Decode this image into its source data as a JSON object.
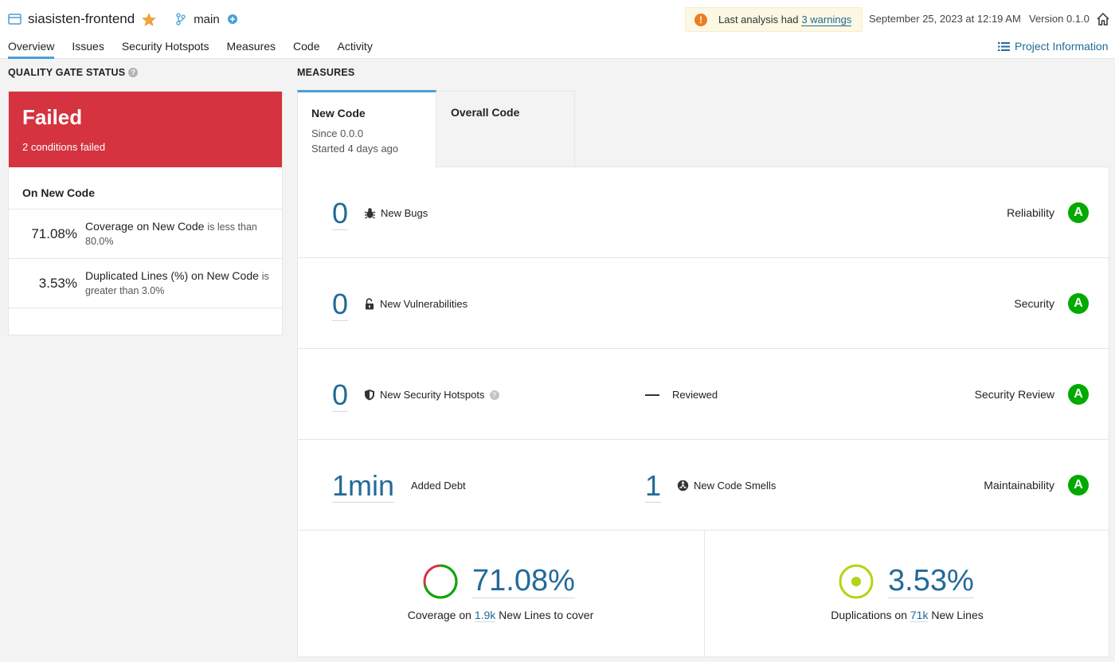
{
  "header": {
    "project_name": "siasisten-frontend",
    "branch": "main",
    "warning_prefix": "Last analysis had",
    "warning_link": "3 warnings",
    "date": "September 25, 2023 at 12:19 AM",
    "version": "Version 0.1.0",
    "project_info": "Project Information"
  },
  "tabs": [
    {
      "label": "Overview",
      "active": true
    },
    {
      "label": "Issues"
    },
    {
      "label": "Security Hotspots"
    },
    {
      "label": "Measures"
    },
    {
      "label": "Code"
    },
    {
      "label": "Activity"
    }
  ],
  "quality_gate": {
    "heading": "QUALITY GATE STATUS",
    "status": "Failed",
    "subtitle": "2 conditions failed",
    "on_new_code": "On New Code",
    "conditions": [
      {
        "value": "71.08%",
        "metric": "Coverage on New Code",
        "op": "is less than",
        "threshold": "80.0%"
      },
      {
        "value": "3.53%",
        "metric": "Duplicated Lines (%) on New Code",
        "op": "is",
        "threshold": "greater than 3.0%"
      }
    ]
  },
  "measures": {
    "heading": "MEASURES",
    "tab_new": {
      "label": "New Code",
      "since": "Since 0.0.0",
      "started": "Started 4 days ago"
    },
    "tab_overall": {
      "label": "Overall Code"
    },
    "rows": {
      "bugs": {
        "value": "0",
        "label": "New Bugs",
        "type": "Reliability",
        "rating": "A"
      },
      "vulns": {
        "value": "0",
        "label": "New Vulnerabilities",
        "type": "Security",
        "rating": "A"
      },
      "hotspots": {
        "value": "0",
        "label": "New Security Hotspots",
        "reviewed_value": "—",
        "reviewed_label": "Reviewed",
        "type": "Security Review",
        "rating": "A"
      },
      "maint": {
        "debt": "1min",
        "debt_label": "Added Debt",
        "smells": "1",
        "smells_label": "New Code Smells",
        "type": "Maintainability",
        "rating": "A"
      }
    },
    "coverage": {
      "value": "71.08%",
      "fraction": 0.7108,
      "prefix": "Coverage on",
      "lines": "1.9k",
      "suffix": "New Lines to cover"
    },
    "duplications": {
      "value": "3.53%",
      "prefix": "Duplications on",
      "lines": "71k",
      "suffix": "New Lines"
    }
  },
  "colors": {
    "failed": "#d4333f",
    "rating_a": "#00aa00",
    "link": "#236a97",
    "accent": "#4b9fd5"
  }
}
